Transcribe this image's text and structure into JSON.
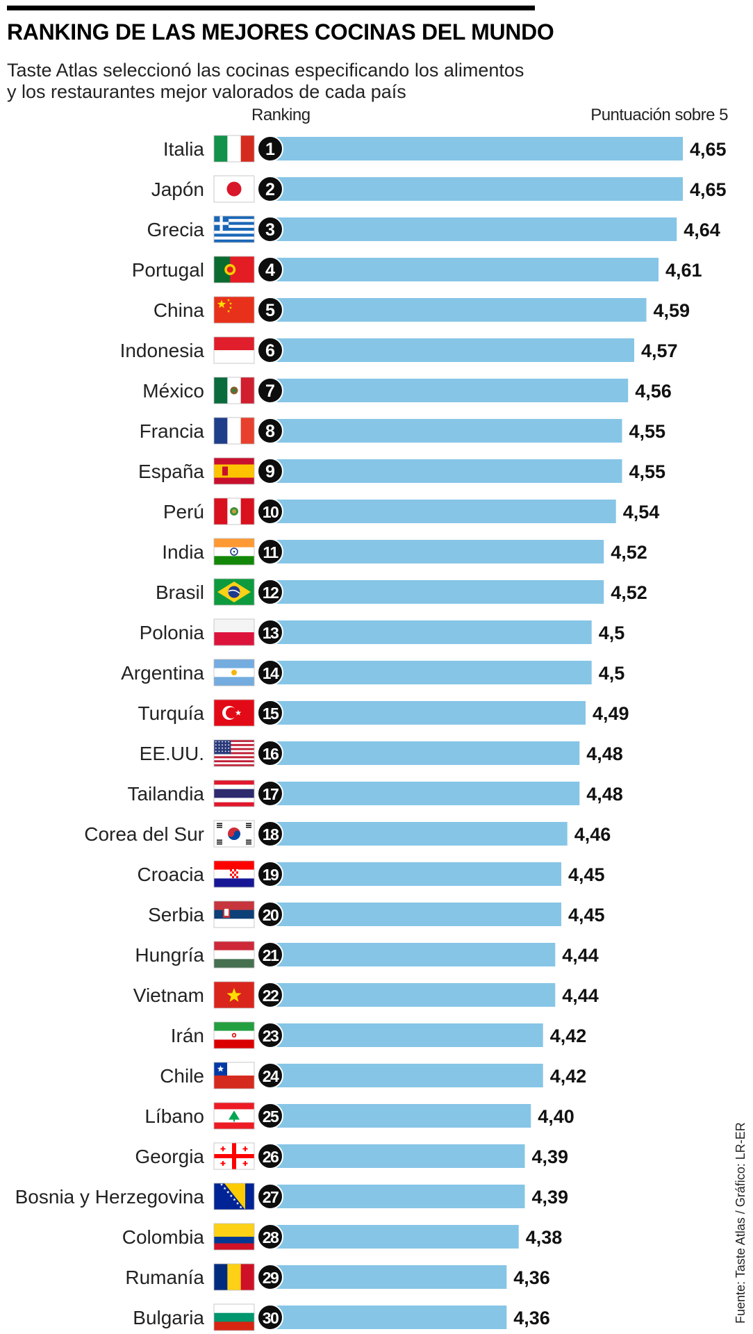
{
  "header": {
    "title": "RANKING DE LAS MEJORES COCINAS DEL MUNDO",
    "subtitle": "Taste Atlas seleccionó las cocinas especificando los alimentos y los restaurantes mejor valorados de cada país"
  },
  "chart_data": {
    "type": "bar",
    "orientation": "horizontal",
    "title": "RANKING DE LAS MEJORES COCINAS DEL MUNDO",
    "rank_column_label": "Ranking",
    "value_column_label": "Puntuación sobre 5",
    "bar_color": "#86c5e6",
    "categories": [
      "Italia",
      "Japón",
      "Grecia",
      "Portugal",
      "China",
      "Indonesia",
      "México",
      "Francia",
      "España",
      "Perú",
      "India",
      "Brasil",
      "Polonia",
      "Argentina",
      "Turquía",
      "EE.UU.",
      "Tailandia",
      "Corea del Sur",
      "Croacia",
      "Serbia",
      "Hungría",
      "Vietnam",
      "Irán",
      "Chile",
      "Líbano",
      "Georgia",
      "Bosnia y Herzegovina",
      "Colombia",
      "Rumanía",
      "Bulgaria"
    ],
    "ranks": [
      "1",
      "2",
      "3",
      "4",
      "5",
      "6",
      "7",
      "8",
      "9",
      "10",
      "11",
      "12",
      "13",
      "14",
      "15",
      "16",
      "17",
      "18",
      "19",
      "20",
      "21",
      "22",
      "23",
      "24",
      "25",
      "26",
      "27",
      "28",
      "29",
      "30"
    ],
    "values": [
      4.65,
      4.65,
      4.64,
      4.61,
      4.59,
      4.57,
      4.56,
      4.55,
      4.55,
      4.54,
      4.52,
      4.52,
      4.5,
      4.5,
      4.49,
      4.48,
      4.48,
      4.46,
      4.45,
      4.45,
      4.44,
      4.44,
      4.42,
      4.42,
      4.4,
      4.39,
      4.39,
      4.38,
      4.36,
      4.36
    ],
    "value_labels": [
      "4,65",
      "4,65",
      "4,64",
      "4,61",
      "4,59",
      "4,57",
      "4,56",
      "4,55",
      "4,55",
      "4,54",
      "4,52",
      "4,52",
      "4,5",
      "4,5",
      "4,49",
      "4,48",
      "4,48",
      "4,46",
      "4,45",
      "4,45",
      "4,44",
      "4,44",
      "4,42",
      "4,42",
      "4,40",
      "4,39",
      "4,39",
      "4,38",
      "4,36",
      "4,36"
    ],
    "flag_icons": [
      "italy-flag-icon",
      "japan-flag-icon",
      "greece-flag-icon",
      "portugal-flag-icon",
      "china-flag-icon",
      "indonesia-flag-icon",
      "mexico-flag-icon",
      "france-flag-icon",
      "spain-flag-icon",
      "peru-flag-icon",
      "india-flag-icon",
      "brazil-flag-icon",
      "poland-flag-icon",
      "argentina-flag-icon",
      "turkey-flag-icon",
      "usa-flag-icon",
      "thailand-flag-icon",
      "south-korea-flag-icon",
      "croatia-flag-icon",
      "serbia-flag-icon",
      "hungary-flag-icon",
      "vietnam-flag-icon",
      "iran-flag-icon",
      "chile-flag-icon",
      "lebanon-flag-icon",
      "georgia-flag-icon",
      "bosnia-flag-icon",
      "colombia-flag-icon",
      "romania-flag-icon",
      "bulgaria-flag-icon"
    ],
    "axis_range": [
      3.97,
      4.65
    ]
  },
  "footer": {
    "source": "Fuente: Taste Atlas / Gráfico: LR-ER"
  }
}
